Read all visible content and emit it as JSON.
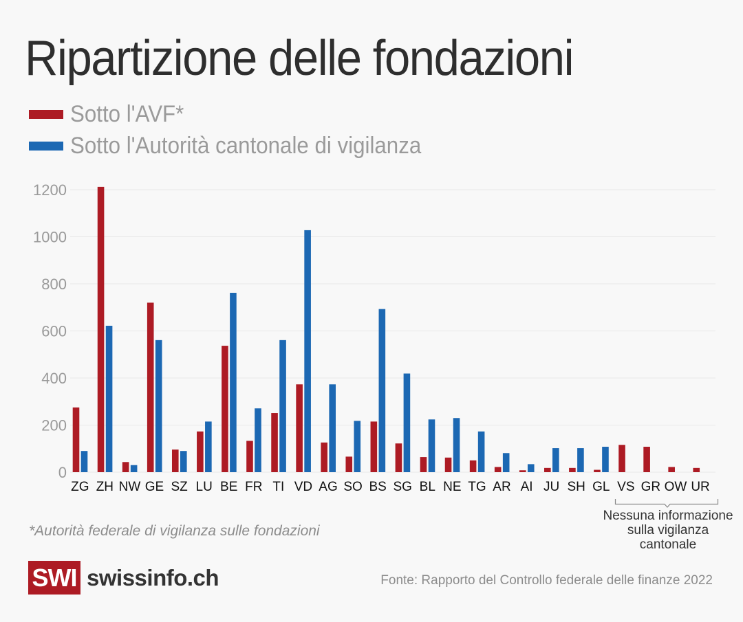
{
  "chart_data": {
    "type": "bar",
    "title": "Ripartizione delle fondazioni",
    "xlabel": "",
    "ylabel": "",
    "ylim": [
      0,
      1200
    ],
    "yticks": [
      0,
      200,
      400,
      600,
      800,
      1000,
      1200
    ],
    "grid": true,
    "legend_position": "top-left",
    "categories": [
      "ZG",
      "ZH",
      "NW",
      "GE",
      "SZ",
      "LU",
      "BE",
      "FR",
      "TI",
      "VD",
      "AG",
      "SO",
      "BS",
      "SG",
      "BL",
      "NE",
      "TG",
      "AR",
      "AI",
      "JU",
      "SH",
      "GL",
      "VS",
      "GR",
      "OW",
      "UR"
    ],
    "series": [
      {
        "name": "Sotto l'AVF*",
        "color": "#ad1b24",
        "values": [
          275,
          1212,
          43,
          720,
          96,
          173,
          537,
          133,
          251,
          373,
          126,
          66,
          215,
          122,
          64,
          62,
          50,
          22,
          8,
          18,
          18,
          10,
          116,
          108,
          22,
          18
        ]
      },
      {
        "name": "Sotto l'Autorità cantonale di vigilanza",
        "color": "#1c68b3",
        "values": [
          90,
          622,
          30,
          561,
          90,
          215,
          762,
          271,
          561,
          1028,
          373,
          218,
          693,
          419,
          224,
          230,
          173,
          81,
          34,
          102,
          102,
          108,
          null,
          null,
          null,
          null
        ]
      }
    ],
    "annotations": [
      {
        "text": "Nessuna informazione sulla vigilanza cantonale",
        "lines": [
          "Nessuna informazione",
          "sulla vigilanza",
          "cantonale"
        ],
        "applies_to": [
          "VS",
          "GR",
          "OW",
          "UR"
        ]
      }
    ]
  },
  "header": {
    "title": "Ripartizione delle fondazioni"
  },
  "legend": [
    {
      "label": "Sotto l'AVF*",
      "color": "#ad1b24"
    },
    {
      "label": "Sotto l'Autorità cantonale di vigilanza",
      "color": "#1c68b3"
    }
  ],
  "footnote": "*Autorità federale di vigilanza sulle fondazioni",
  "annotation": {
    "line1": "Nessuna informazione",
    "line2": "sulla vigilanza",
    "line3": "cantonale"
  },
  "footer": {
    "logo_mark": "SWI",
    "logo_text": "swissinfo.ch",
    "source": "Fonte: Rapporto del Controllo federale delle finanze 2022"
  }
}
